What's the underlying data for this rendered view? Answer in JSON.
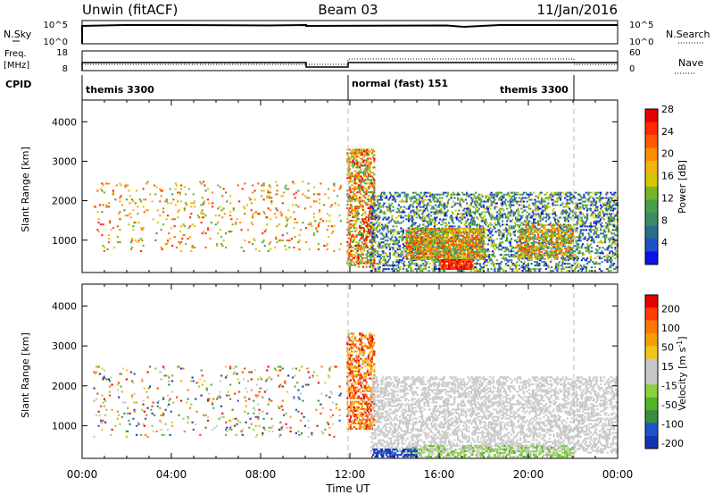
{
  "header": {
    "radar": "Unwin (fitACF)",
    "beam": "Beam 03",
    "date": "11/Jan/2016"
  },
  "nsky_panel": {
    "label": "N.Sky",
    "ticks": [
      "10^5",
      "10^0"
    ],
    "right_label": "N.Search",
    "right_ticks": [
      "10^5",
      "10^0"
    ]
  },
  "freq_panel": {
    "label_line1": "Freq.",
    "label_line2": "[MHz]",
    "ticks": [
      "18",
      "8"
    ],
    "right_label": "Nave",
    "right_ticks": [
      "60",
      "0"
    ]
  },
  "cpid_panel": {
    "label": "CPID",
    "segments": [
      "themis 3300",
      "normal (fast) 151",
      "themis 3300"
    ]
  },
  "x_axis": {
    "tick_labels": [
      "00:00",
      "04:00",
      "08:00",
      "12:00",
      "16:00",
      "20:00",
      "00:00"
    ],
    "title": "Time UT"
  },
  "chart_data": [
    {
      "type": "heatmap",
      "name": "power",
      "ylabel": "Slant Range [km]",
      "y_tick_labels": [
        "1000",
        "2000",
        "3000",
        "4000"
      ],
      "ylim": [
        180,
        4550
      ],
      "xlim": [
        0,
        24
      ],
      "colorbar": {
        "label": "Power [dB]",
        "tick_labels": [
          "4",
          "8",
          "12",
          "16",
          "20",
          "24",
          "28"
        ],
        "colors": [
          "#0a14e6",
          "#1e50c8",
          "#2a6e8c",
          "#3c8c64",
          "#46a04a",
          "#78b428",
          "#d2c800",
          "#f0b414",
          "#ff8c00",
          "#ff5a00",
          "#ff2800",
          "#e60000"
        ]
      },
      "regions": [
        {
          "t0": 0.5,
          "t1": 11.6,
          "r0": 700,
          "r1": 2500,
          "density": 0.05,
          "levels": [
            0.35,
            0.9
          ]
        },
        {
          "t0": 11.85,
          "t1": 13.1,
          "r0": 300,
          "r1": 3300,
          "density": 0.45,
          "levels": [
            0.3,
            1.0
          ]
        },
        {
          "t0": 12.9,
          "t1": 24.0,
          "r0": 200,
          "r1": 2200,
          "density": 0.3,
          "levels": [
            0.0,
            0.6
          ]
        },
        {
          "t0": 14.5,
          "t1": 18.0,
          "r0": 500,
          "r1": 1300,
          "density": 0.65,
          "levels": [
            0.3,
            0.9
          ]
        },
        {
          "t0": 16.0,
          "t1": 17.5,
          "r0": 250,
          "r1": 500,
          "density": 0.75,
          "levels": [
            0.75,
            1.0
          ]
        },
        {
          "t0": 19.5,
          "t1": 22.0,
          "r0": 500,
          "r1": 1400,
          "density": 0.45,
          "levels": [
            0.3,
            0.85
          ]
        }
      ]
    },
    {
      "type": "heatmap",
      "name": "velocity",
      "ylabel": "Slant Range [km]",
      "y_tick_labels": [
        "1000",
        "2000",
        "3000",
        "4000"
      ],
      "ylim": [
        180,
        4550
      ],
      "xlim": [
        0,
        24
      ],
      "colorbar": {
        "label": "Velocity [m s^-1]",
        "tick_labels": [
          "200",
          "100",
          "50",
          "15",
          "-15",
          "-50",
          "-100",
          "-200"
        ],
        "colors": [
          "#1432b4",
          "#1e50d2",
          "#3c8c3c",
          "#50b428",
          "#8cd23c",
          "#c8c8c8",
          "#c8c8c8",
          "#f0c814",
          "#f5a000",
          "#ff7800",
          "#ff3c00",
          "#e60000"
        ]
      },
      "regions": [
        {
          "t0": 0.5,
          "t1": 11.6,
          "r0": 700,
          "r1": 2500,
          "density": 0.05,
          "levels": [
            0.0,
            1.0
          ]
        },
        {
          "t0": 11.85,
          "t1": 13.1,
          "r0": 900,
          "r1": 3300,
          "density": 0.45,
          "levels": [
            0.55,
            1.0
          ]
        },
        {
          "t0": 12.9,
          "t1": 24.0,
          "r0": 300,
          "r1": 2200,
          "density": 0.35,
          "levels": [
            0.45,
            0.58
          ]
        },
        {
          "t0": 14.5,
          "t1": 22.0,
          "r0": 200,
          "r1": 500,
          "density": 0.35,
          "levels": [
            0.3,
            0.45
          ]
        },
        {
          "t0": 13.0,
          "t1": 15.0,
          "r0": 200,
          "r1": 400,
          "density": 0.5,
          "levels": [
            0.0,
            0.15
          ]
        }
      ]
    }
  ]
}
